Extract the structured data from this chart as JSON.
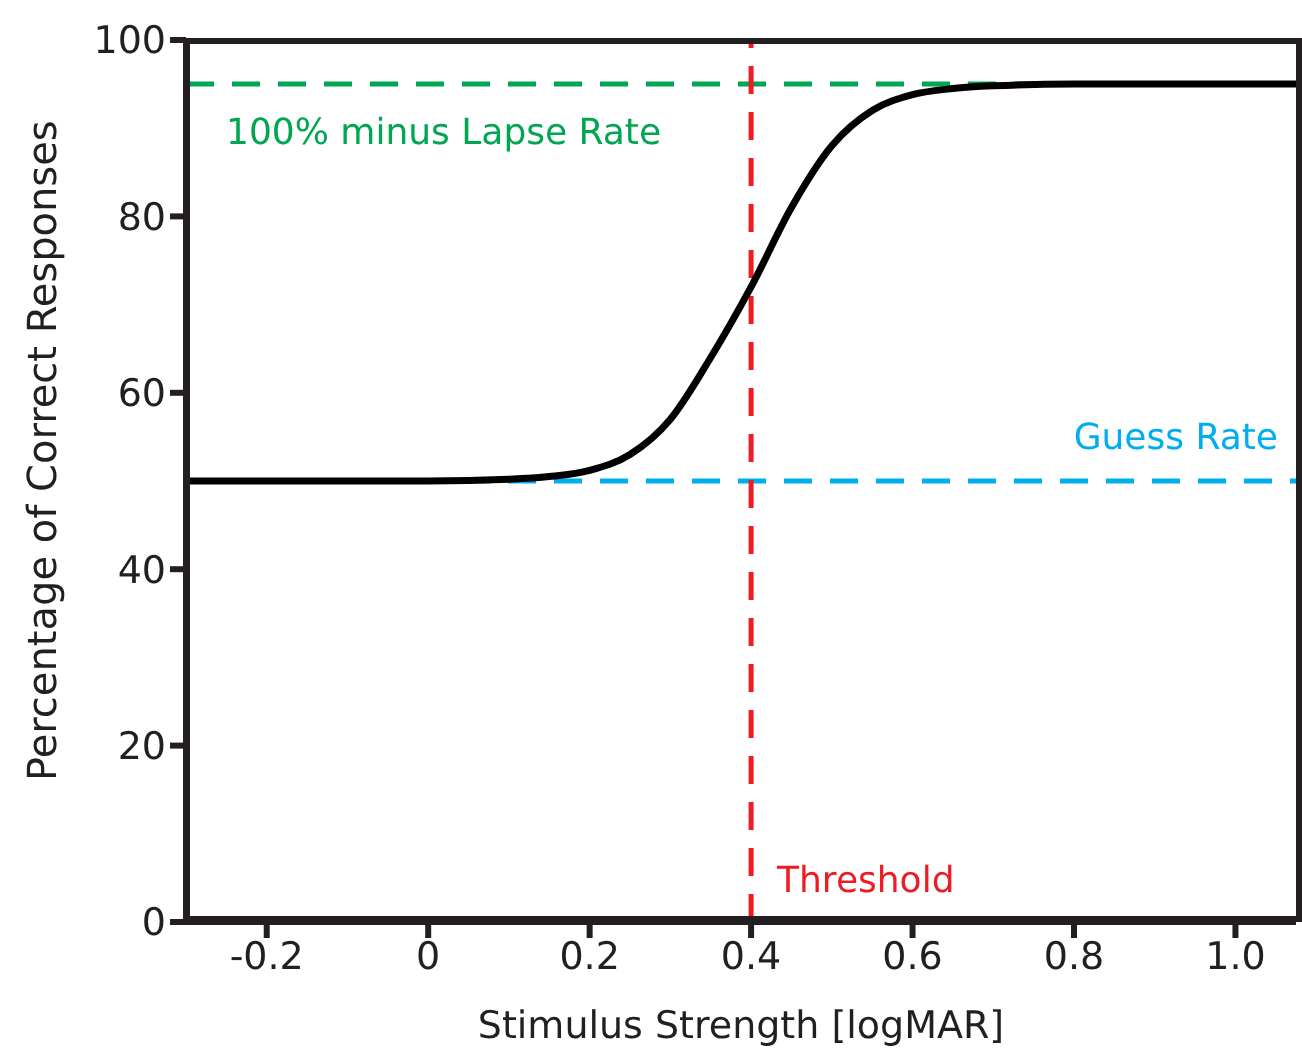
{
  "chart_data": {
    "type": "line",
    "xlabel": "Stimulus Strength [logMAR]",
    "ylabel": "Percentage of Correct Responses",
    "x": [
      -0.3,
      0,
      0.1,
      0.15,
      0.2,
      0.25,
      0.3,
      0.35,
      0.4,
      0.45,
      0.5,
      0.55,
      0.6,
      0.65,
      0.7,
      0.8,
      1.075
    ],
    "series": [
      {
        "color": "#000000",
        "values": [
          50,
          50,
          50.2,
          50.5,
          51.2,
          53,
          57,
          64,
          72,
          81,
          88,
          92,
          93.8,
          94.5,
          94.8,
          95,
          95
        ]
      }
    ],
    "xlim": [
      -0.3,
      1.075
    ],
    "xticks": [
      -0.2,
      0,
      0.2,
      0.4,
      0.6,
      0.8,
      {
        "value": 1,
        "label": "1.0"
      }
    ],
    "ylim": [
      0,
      100
    ],
    "yticks": [
      0,
      20,
      40,
      60,
      80,
      100
    ],
    "ref_lines": [
      {
        "axis": "y",
        "value": 95,
        "label": "100% minus Lapse Rate",
        "color": "#00a651",
        "line_style": "dashed"
      },
      {
        "axis": "y",
        "value": 50,
        "label": "Guess Rate",
        "color": "#00aeef",
        "line_style": "dashed"
      },
      {
        "axis": "x",
        "value": 0.4,
        "label": "Threshold",
        "color": "#ed1c24",
        "line_style": "dashed"
      }
    ],
    "grid": false,
    "legend": false,
    "marker": "none",
    "line_style": "solid"
  }
}
